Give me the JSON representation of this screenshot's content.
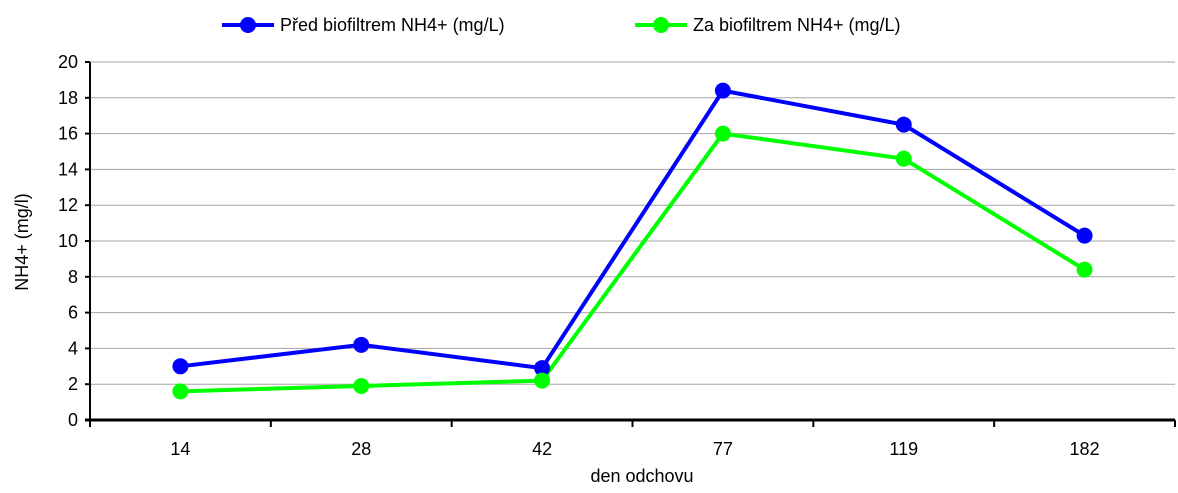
{
  "chart_data": {
    "type": "line",
    "categories": [
      "14",
      "28",
      "42",
      "77",
      "119",
      "182"
    ],
    "series": [
      {
        "name": "Před biofiltrem NH4+ (mg/L)",
        "color": "#0000ff",
        "values": [
          3.0,
          4.2,
          2.9,
          18.4,
          16.5,
          10.3
        ]
      },
      {
        "name": "Za biofiltrem NH4+ (mg/L)",
        "color": "#00ff00",
        "values": [
          1.6,
          1.9,
          2.2,
          16.0,
          14.6,
          8.4
        ]
      }
    ],
    "xlabel": "den odchovu",
    "ylabel": "NH4+  (mg/l)",
    "ylim": [
      0,
      20
    ],
    "yticks": [
      "0",
      "2",
      "4",
      "6",
      "8",
      "10",
      "12",
      "14",
      "16",
      "18",
      "20"
    ],
    "grid": true,
    "legend": "top"
  }
}
